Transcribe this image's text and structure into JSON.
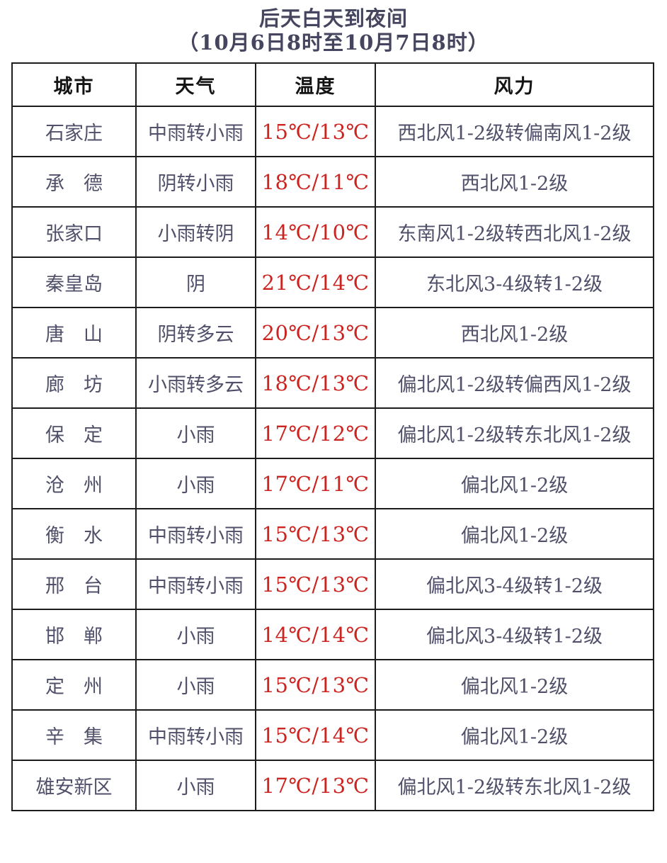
{
  "title": {
    "line1": "后天白天到夜间",
    "line2": "（10月6日8时至10月7日8时）"
  },
  "colors": {
    "temperature_text": "#cc2420",
    "body_text": "#50506a",
    "header_text": "#141414",
    "title_text": "#45455f",
    "border": "#1c1c1c",
    "background": "#ffffff"
  },
  "table": {
    "headers": [
      "城市",
      "天气",
      "温度",
      "风力"
    ],
    "rows": [
      {
        "city": "石家庄",
        "weather": "中雨转小雨",
        "temp": "15℃/13℃",
        "wind": "西北风1-2级转偏南风1-2级"
      },
      {
        "city": "承　德",
        "weather": "阴转小雨",
        "temp": "18℃/11℃",
        "wind": "西北风1-2级"
      },
      {
        "city": "张家口",
        "weather": "小雨转阴",
        "temp": "14℃/10℃",
        "wind": "东南风1-2级转西北风1-2级"
      },
      {
        "city": "秦皇岛",
        "weather": "阴",
        "temp": "21℃/14℃",
        "wind": "东北风3-4级转1-2级"
      },
      {
        "city": "唐　山",
        "weather": "阴转多云",
        "temp": "20℃/13℃",
        "wind": "西北风1-2级"
      },
      {
        "city": "廊　坊",
        "weather": "小雨转多云",
        "temp": "18℃/13℃",
        "wind": "偏北风1-2级转偏西风1-2级"
      },
      {
        "city": "保　定",
        "weather": "小雨",
        "temp": "17℃/12℃",
        "wind": "偏北风1-2级转东北风1-2级"
      },
      {
        "city": "沧　州",
        "weather": "小雨",
        "temp": "17℃/11℃",
        "wind": "偏北风1-2级"
      },
      {
        "city": "衡　水",
        "weather": "中雨转小雨",
        "temp": "15℃/13℃",
        "wind": "偏北风1-2级"
      },
      {
        "city": "邢　台",
        "weather": "中雨转小雨",
        "temp": "15℃/13℃",
        "wind": "偏北风3-4级转1-2级"
      },
      {
        "city": "邯　郸",
        "weather": "小雨",
        "temp": "14℃/14℃",
        "wind": "偏北风3-4级转1-2级"
      },
      {
        "city": "定　州",
        "weather": "小雨",
        "temp": "15℃/13℃",
        "wind": "偏北风1-2级"
      },
      {
        "city": "辛　集",
        "weather": "中雨转小雨",
        "temp": "15℃/14℃",
        "wind": "偏北风1-2级"
      },
      {
        "city": "雄安新区",
        "weather": "小雨",
        "temp": "17℃/13℃",
        "wind": "偏北风1-2级转东北风1-2级"
      }
    ]
  }
}
